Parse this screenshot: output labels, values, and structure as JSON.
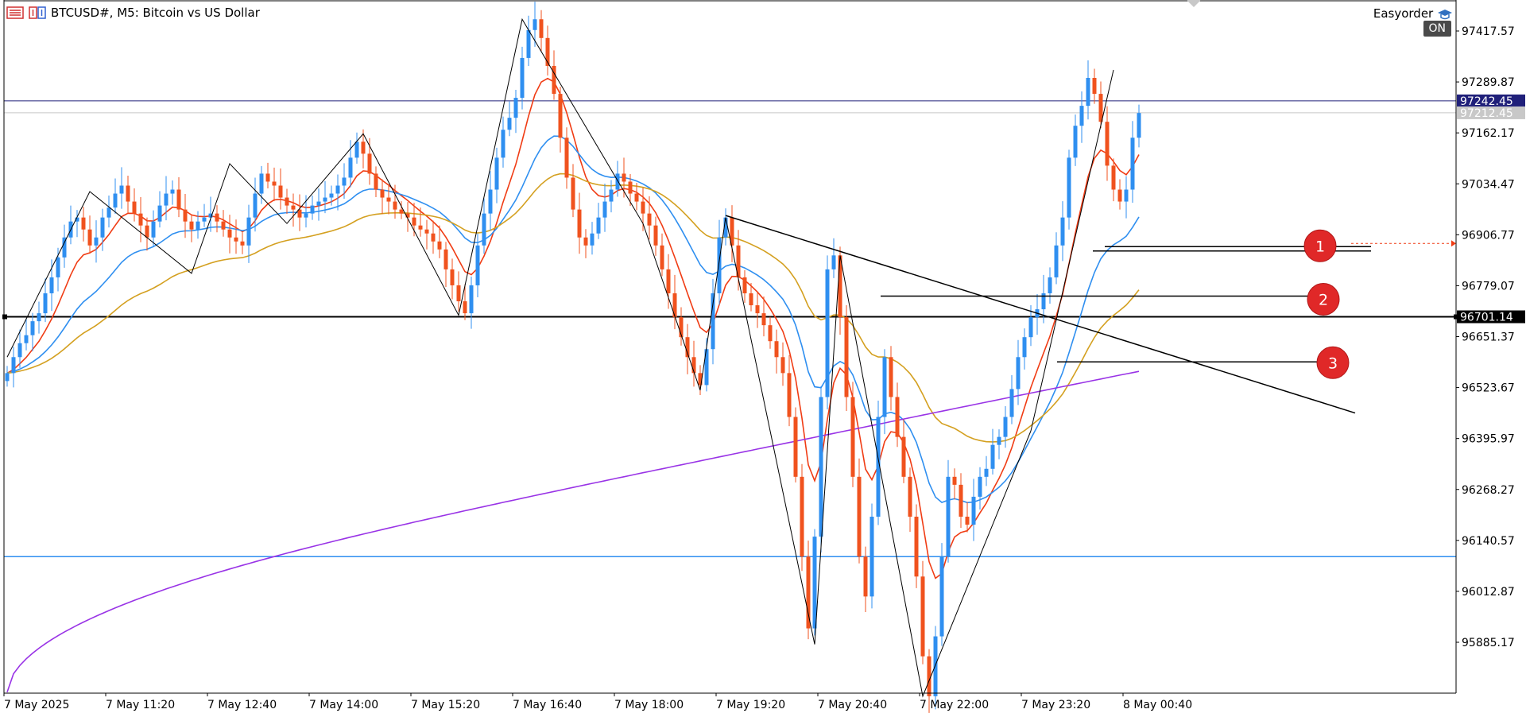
{
  "title_bar": {
    "symbol_title": "BTCUSD#, M5:  Bitcoin vs US Dollar"
  },
  "expert": {
    "name": "Easyorder",
    "status": "ON"
  },
  "price_axis": {
    "labels": [
      "97417.57",
      "97289.87",
      "97162.17",
      "97034.47",
      "96906.77",
      "96779.07",
      "96651.37",
      "96523.67",
      "96395.97",
      "96268.27",
      "96140.57",
      "96012.87",
      "95885.17"
    ],
    "ask_badge": "97242.45",
    "bid_badge": "97212.45",
    "hline_badge": "96701.14"
  },
  "time_axis": {
    "labels": [
      "7 May 2025",
      "7 May 11:20",
      "7 May 12:40",
      "7 May 14:00",
      "7 May 15:20",
      "7 May 16:40",
      "7 May 18:00",
      "7 May 19:20",
      "7 May 20:40",
      "7 May 22:00",
      "7 May 23:20",
      "8 May 00:40"
    ]
  },
  "markers": [
    "1",
    "2",
    "3"
  ],
  "colors": {
    "bull": "#2f8ff0",
    "bear": "#f0521e",
    "ma_fast": "#f03c14",
    "ma_mid": "#2f8ff0",
    "ma_slow": "#d4a020",
    "ma_long": "#9933e6",
    "ask_line": "#20207a",
    "blue_hline": "#2f8ff0",
    "marker": "#e02828"
  },
  "chart_data": {
    "type": "candlestick",
    "symbol": "BTCUSD#",
    "timeframe": "M5",
    "y_range": [
      95760,
      97465
    ],
    "current_price_ask": 97242.45,
    "current_price_bid": 97212.45,
    "horizontal_line": 96701.14,
    "blue_horizontal_line": 96100,
    "marker_levels": {
      "1": 96877,
      "2": 96753,
      "3": 96588
    },
    "trendline": {
      "from": [
        "7 May 19:25",
        96955
      ],
      "to": [
        "8 May 03:40",
        96460
      ]
    },
    "zigzag": [
      [
        "7 May 10:00",
        96600
      ],
      [
        "7 May 11:05",
        97015
      ],
      [
        "7 May 12:25",
        96810
      ],
      [
        "7 May 12:55",
        97085
      ],
      [
        "7 May 13:40",
        96935
      ],
      [
        "7 May 14:40",
        97160
      ],
      [
        "7 May 15:55",
        96705
      ],
      [
        "7 May 16:45",
        97447
      ],
      [
        "7 May 18:20",
        96935
      ],
      [
        "7 May 19:05",
        96517
      ],
      [
        "7 May 19:25",
        96950
      ],
      [
        "7 May 20:35",
        95880
      ],
      [
        "7 May 20:55",
        96855
      ],
      [
        "7 May 22:00",
        95750
      ],
      [
        "7 May 23:25",
        96415
      ],
      [
        "8 May 00:30",
        97320
      ]
    ],
    "candle_highs_lows_note": "close series below, 5-minute bars",
    "closes": [
      96560,
      96600,
      96635,
      96655,
      96690,
      96710,
      96760,
      96800,
      96850,
      96900,
      96940,
      96950,
      96920,
      96880,
      96900,
      96950,
      96975,
      97010,
      97030,
      96990,
      96960,
      96930,
      96900,
      96940,
      96980,
      97010,
      97020,
      96970,
      96940,
      96920,
      96940,
      96950,
      96960,
      96940,
      96920,
      96900,
      96890,
      96880,
      96950,
      97010,
      97060,
      97040,
      97030,
      97000,
      96980,
      96970,
      96950,
      96960,
      96980,
      96990,
      97000,
      97010,
      97030,
      97050,
      97100,
      97140,
      97110,
      97060,
      97020,
      97000,
      96990,
      96970,
      96960,
      96950,
      96930,
      96920,
      96910,
      96890,
      96870,
      96820,
      96780,
      96740,
      96710,
      96780,
      96880,
      96960,
      97020,
      97100,
      97170,
      97200,
      97250,
      97350,
      97420,
      97447,
      97400,
      97330,
      97260,
      97150,
      97050,
      96970,
      96900,
      96880,
      96910,
      96950,
      96990,
      97020,
      97060,
      97040,
      97010,
      96990,
      96960,
      96930,
      96880,
      96820,
      96760,
      96700,
      96650,
      96600,
      96560,
      96530,
      96620,
      96760,
      96900,
      96950,
      96880,
      96800,
      96760,
      96730,
      96710,
      96680,
      96640,
      96600,
      96560,
      96450,
      96300,
      96100,
      95920,
      96150,
      96500,
      96820,
      96855,
      96700,
      96500,
      96300,
      96100,
      96000,
      96200,
      96450,
      96600,
      96500,
      96400,
      96300,
      96200,
      96050,
      95850,
      95750,
      95900,
      96100,
      96300,
      96280,
      96200,
      96180,
      96250,
      96300,
      96320,
      96380,
      96400,
      96450,
      96520,
      96600,
      96650,
      96700,
      96720,
      96760,
      96800,
      96880,
      96950,
      97100,
      97180,
      97230,
      97300,
      97260,
      97190,
      97080,
      97020,
      96990,
      97020,
      97150,
      97212
    ],
    "moving_averages": [
      {
        "period": "fast",
        "color": "#f03c14"
      },
      {
        "period": "mid",
        "color": "#2f8ff0"
      },
      {
        "period": "slow",
        "color": "#d4a020"
      },
      {
        "period": "long",
        "color": "#9933e6"
      }
    ]
  }
}
